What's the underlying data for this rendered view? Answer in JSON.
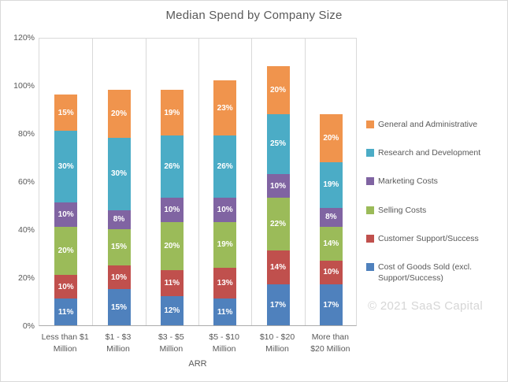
{
  "title": "Median Spend by Company Size",
  "watermark": "© 2021 SaaS Capital",
  "chart_data": {
    "type": "bar",
    "stacked": true,
    "title": "Median Spend by Company Size",
    "xlabel": "ARR",
    "ylabel": "",
    "ylim": [
      0,
      120
    ],
    "yticks": [
      "0%",
      "20%",
      "40%",
      "60%",
      "80%",
      "100%",
      "120%"
    ],
    "grid": "vertical-category-separators-only",
    "legend_position": "right",
    "data_labels": "percent-inside-white-bold",
    "categories": [
      "Less than $1 Million",
      "$1 - $3 Million",
      "$3 - $5 Million",
      "$5 - $10 Million",
      "$10 - $20 Million",
      "More than $20 Million"
    ],
    "category_lines": [
      "Less than $1\nMillion",
      "$1 - $3\nMillion",
      "$3 - $5\nMillion",
      "$5 - $10\nMillion",
      "$10 - $20\nMillion",
      "More than\n$20 Million"
    ],
    "series": [
      {
        "name": "Cost of Goods Sold (excl. Support/Success)",
        "color": "#4F81BD",
        "values": [
          11,
          15,
          12,
          11,
          17,
          17
        ]
      },
      {
        "name": "Customer Support/Success",
        "color": "#C0504D",
        "values": [
          10,
          10,
          11,
          13,
          14,
          10
        ]
      },
      {
        "name": "Selling Costs",
        "color": "#9BBB59",
        "values": [
          20,
          15,
          20,
          19,
          22,
          14
        ]
      },
      {
        "name": "Marketing Costs",
        "color": "#8064A2",
        "values": [
          10,
          8,
          10,
          10,
          10,
          8
        ]
      },
      {
        "name": "Research and Development",
        "color": "#4BACC6",
        "values": [
          30,
          30,
          26,
          26,
          25,
          19
        ]
      },
      {
        "name": "General and Administrative",
        "color": "#F0944D",
        "values": [
          15,
          20,
          19,
          23,
          20,
          20
        ]
      }
    ],
    "legend_order_top_to_bottom": [
      "General and Administrative",
      "Research and Development",
      "Marketing Costs",
      "Selling Costs",
      "Customer Support/Success",
      "Cost of Goods Sold (excl. Support/Success)"
    ]
  }
}
